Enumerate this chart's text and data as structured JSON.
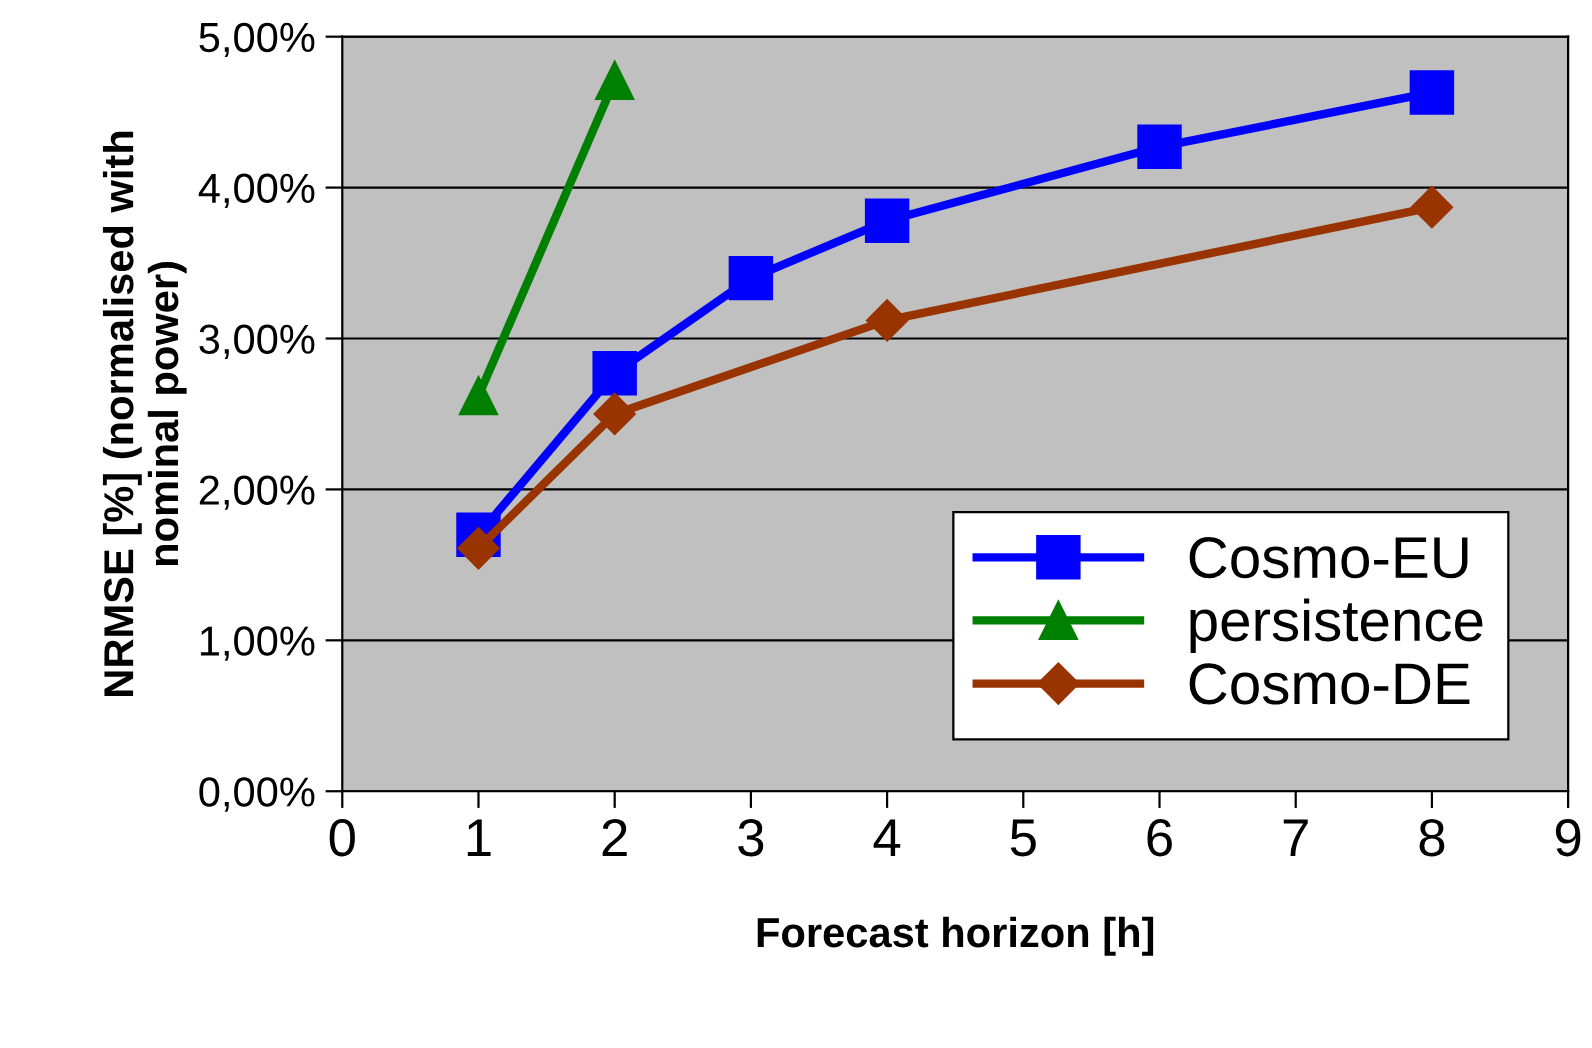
{
  "chart_data": {
    "type": "line",
    "xlabel": "Forecast horizon [h]",
    "ylabel": "NRMSE [%] (normalised with\nnominal power)",
    "xlim": [
      0,
      9
    ],
    "xticks": [
      0,
      1,
      2,
      3,
      4,
      5,
      6,
      7,
      8,
      9
    ],
    "ylim": [
      0,
      5
    ],
    "yticks": [
      {
        "value": 0,
        "label": "0,00%"
      },
      {
        "value": 1,
        "label": "1,00%"
      },
      {
        "value": 2,
        "label": "2,00%"
      },
      {
        "value": 3,
        "label": "3,00%"
      },
      {
        "value": 4,
        "label": "4,00%"
      },
      {
        "value": 5,
        "label": "5,00%"
      }
    ],
    "grid": "y",
    "legend": "bottom right",
    "series": [
      {
        "name": "Cosmo-EU",
        "color": "#0000ff",
        "marker": "square",
        "x": [
          1,
          2,
          3,
          4,
          6,
          8
        ],
        "values": [
          1.7,
          2.77,
          3.4,
          3.78,
          4.27,
          4.63
        ]
      },
      {
        "name": "persistence",
        "color": "#008000",
        "marker": "triangle",
        "x": [
          1,
          2
        ],
        "values": [
          2.62,
          4.71
        ]
      },
      {
        "name": "Cosmo-DE",
        "color": "#993300",
        "marker": "diamond",
        "x": [
          1,
          2,
          4,
          8
        ],
        "values": [
          1.61,
          2.5,
          3.12,
          3.87
        ]
      }
    ]
  }
}
